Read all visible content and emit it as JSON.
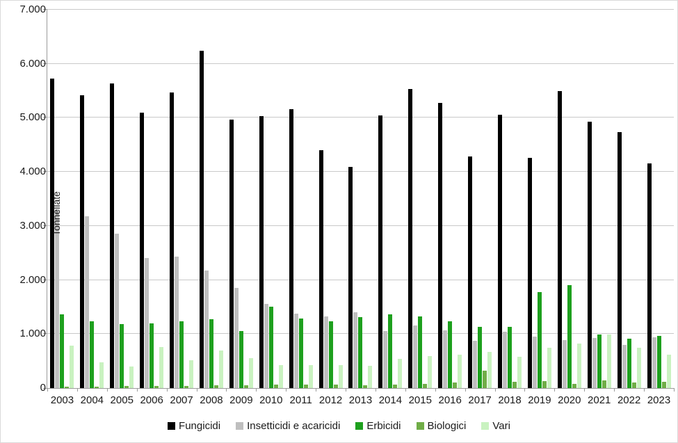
{
  "chart_data": {
    "type": "bar",
    "title": "",
    "xlabel": "",
    "ylabel": "Tonnellate",
    "ylim": [
      0,
      7000
    ],
    "y_tick_step": 1000,
    "y_tick_labels": [
      "0",
      "1.000",
      "2.000",
      "3.000",
      "4.000",
      "5.000",
      "6.000",
      "7.000"
    ],
    "grid": true,
    "legend_position": "bottom",
    "categories": [
      "2003",
      "2004",
      "2005",
      "2006",
      "2007",
      "2008",
      "2009",
      "2010",
      "2011",
      "2012",
      "2013",
      "2014",
      "2015",
      "2016",
      "2017",
      "2018",
      "2019",
      "2020",
      "2021",
      "2022",
      "2023"
    ],
    "series": [
      {
        "name": "Fungicidi",
        "color": "#000000",
        "values": [
          5720,
          5420,
          5640,
          5100,
          5470,
          6240,
          4970,
          5030,
          5160,
          4400,
          4090,
          5050,
          5530,
          5270,
          4280,
          5060,
          4260,
          5500,
          4930,
          4730,
          4150
        ]
      },
      {
        "name": "Insetticidi e acaricidi",
        "color": "#bfbfbf",
        "values": [
          3310,
          3180,
          2860,
          2400,
          2430,
          2170,
          1850,
          1560,
          1380,
          1320,
          1400,
          1050,
          1160,
          1070,
          870,
          1040,
          950,
          890,
          930,
          800,
          940
        ]
      },
      {
        "name": "Erbicidi",
        "color": "#1ea01e",
        "values": [
          1370,
          1230,
          1180,
          1200,
          1240,
          1280,
          1060,
          1500,
          1290,
          1240,
          1310,
          1360,
          1330,
          1230,
          1130,
          1130,
          1770,
          1900,
          990,
          920,
          960
        ]
      },
      {
        "name": "Biologici",
        "color": "#70ad47",
        "values": [
          30,
          30,
          40,
          40,
          40,
          50,
          50,
          60,
          60,
          60,
          50,
          60,
          80,
          100,
          320,
          120,
          130,
          80,
          140,
          100,
          110
        ]
      },
      {
        "name": "Vari",
        "color": "#c9f2c0",
        "values": [
          780,
          480,
          400,
          760,
          510,
          690,
          550,
          420,
          420,
          430,
          410,
          540,
          590,
          620,
          670,
          580,
          750,
          820,
          990,
          750,
          620
        ]
      }
    ]
  }
}
